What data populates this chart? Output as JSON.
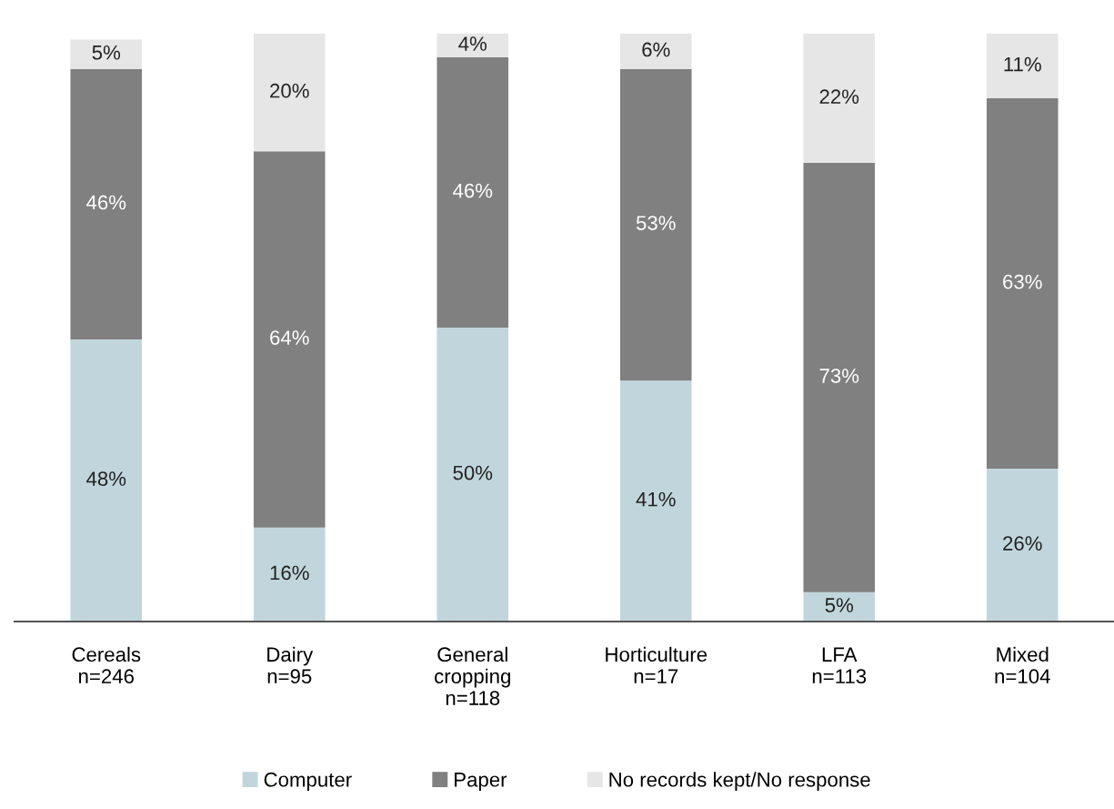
{
  "chart_data": {
    "type": "bar",
    "stacked": true,
    "legend": "bottom",
    "grid": false,
    "categories": [
      "Cereals\nn=246",
      "Dairy\nn=95",
      "General\ncropping\nn=118",
      "Horticulture\nn=17",
      "LFA\nn=113",
      "Mixed\nn=104"
    ],
    "series": [
      {
        "name": "Computer",
        "color": "#c1d6dc",
        "values": [
          48,
          16,
          50,
          41,
          5,
          26
        ],
        "value_labels": [
          "48%",
          "16%",
          "50%",
          "41%",
          "5%",
          "26%"
        ]
      },
      {
        "name": "Paper",
        "color": "#808080",
        "values": [
          46,
          64,
          46,
          53,
          73,
          63
        ],
        "value_labels": [
          "46%",
          "64%",
          "46%",
          "53%",
          "73%",
          "63%"
        ]
      },
      {
        "name": "No records kept/No response",
        "color": "#e6e6e6",
        "values": [
          5,
          20,
          4,
          6,
          22,
          11
        ],
        "value_labels": [
          "5%",
          "20%",
          "4%",
          "6%",
          "22%",
          "11%"
        ]
      }
    ]
  }
}
